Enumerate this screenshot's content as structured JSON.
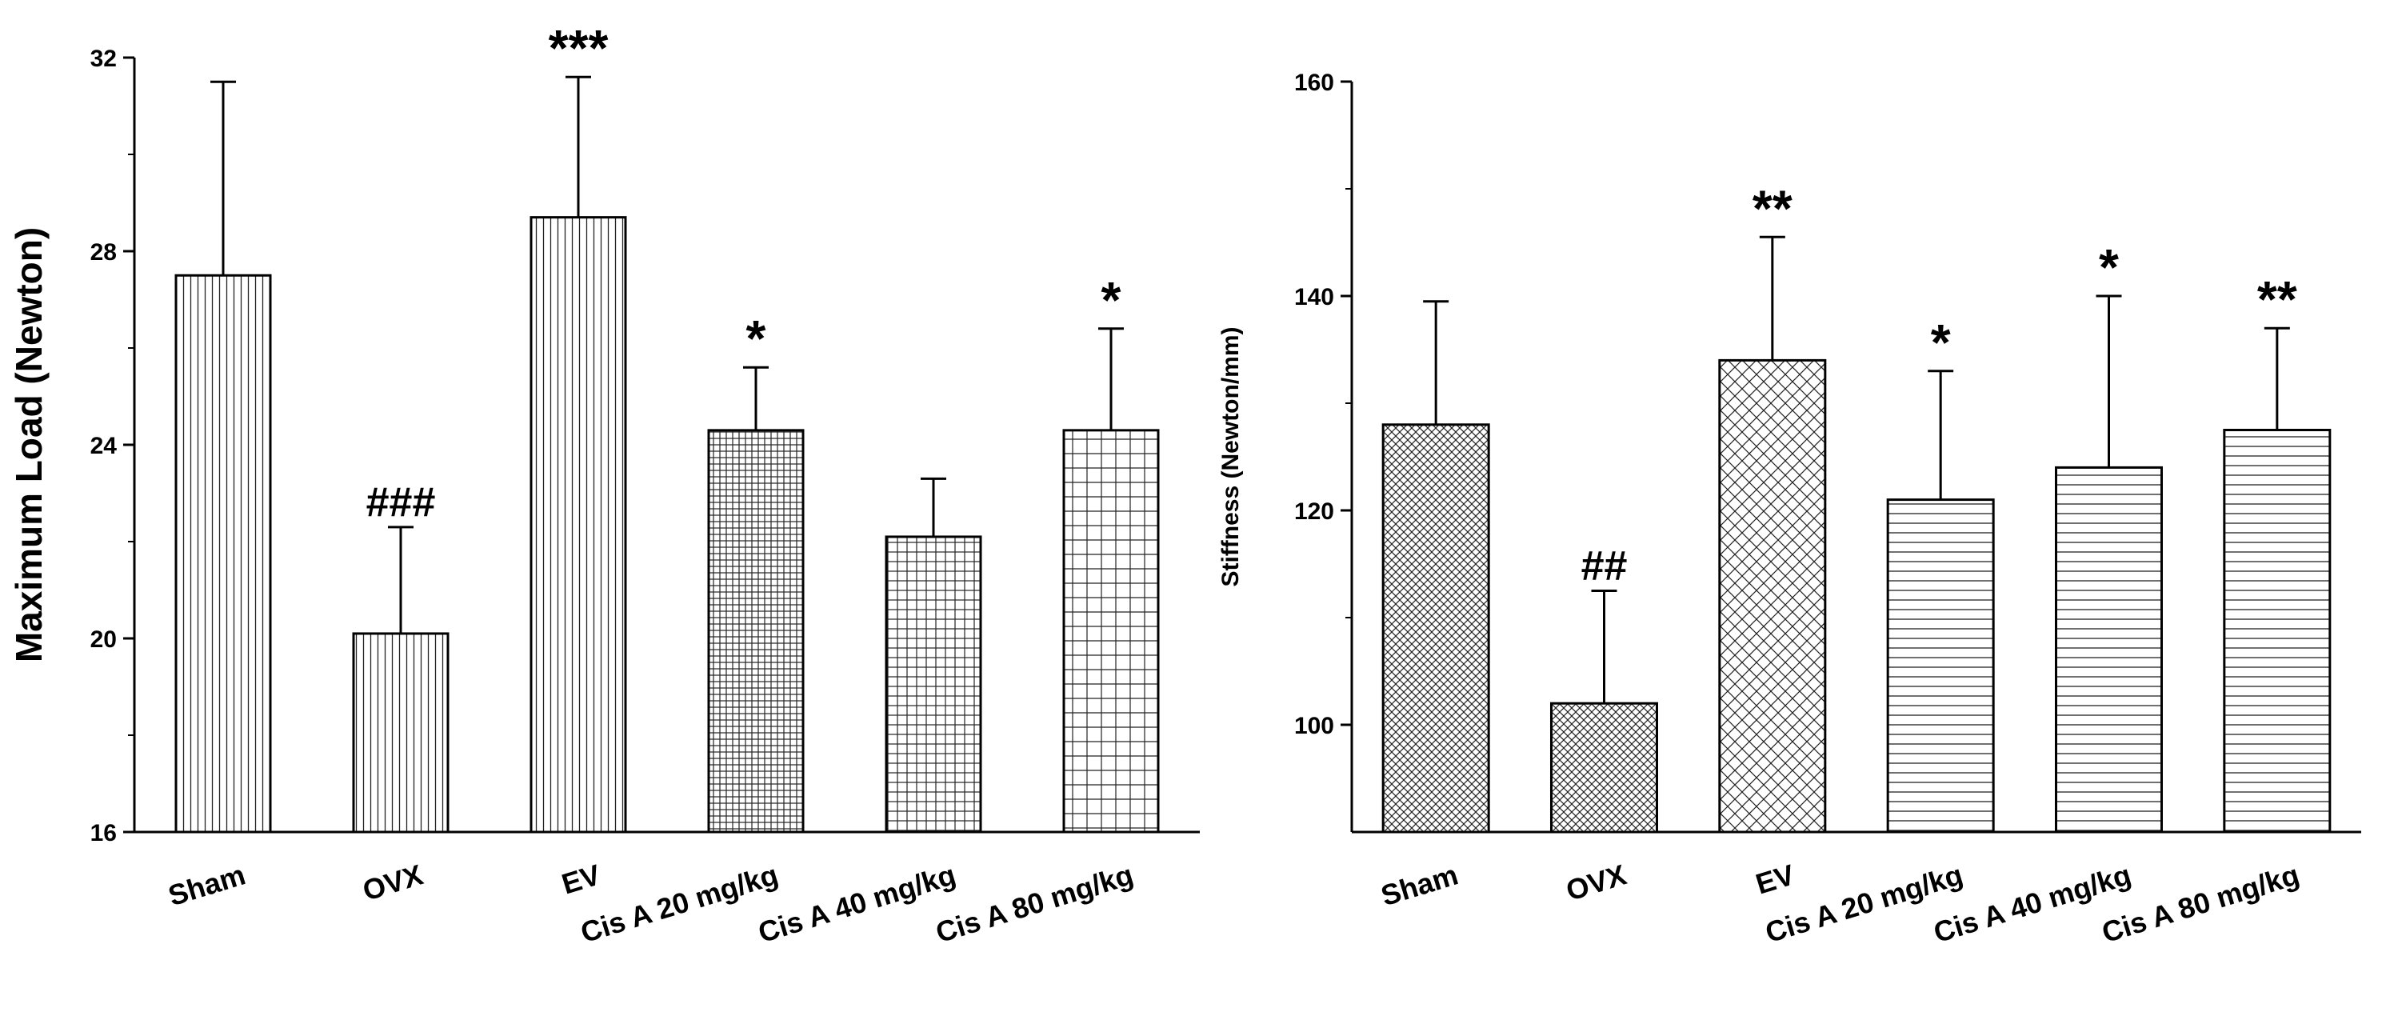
{
  "chart_data": [
    {
      "type": "bar",
      "title": "",
      "xlabel": "",
      "ylabel": "Maximum Load (Newton)",
      "ylim": [
        16,
        32
      ],
      "yticks": [
        16,
        20,
        24,
        28,
        32
      ],
      "grid": false,
      "categories": [
        "Sham",
        "OVX",
        "EV",
        "Cis A 20 mg/kg",
        "Cis A 40 mg/kg",
        "Cis A 80 mg/kg"
      ],
      "values": [
        27.5,
        20.1,
        28.7,
        24.3,
        22.1,
        24.3
      ],
      "errors": [
        4.0,
        2.2,
        2.9,
        1.3,
        1.2,
        2.1
      ],
      "annotations": [
        "",
        "###",
        "***",
        "*",
        "",
        "*"
      ],
      "patterns": [
        "vlines",
        "vlines",
        "vlines",
        "grid-fine",
        "grid-medium",
        "grid-wide"
      ]
    },
    {
      "type": "bar",
      "title": "",
      "xlabel": "",
      "ylabel": "Stiffness (Newton/mm)",
      "ylim": [
        90,
        160
      ],
      "yticks": [
        100,
        120,
        140,
        160
      ],
      "grid": false,
      "categories": [
        "Sham",
        "OVX",
        "EV",
        "Cis A 20 mg/kg",
        "Cis A 40 mg/kg",
        "Cis A 80 mg/kg"
      ],
      "values": [
        128,
        102,
        134,
        121,
        124,
        127.5
      ],
      "errors": [
        11.5,
        10.5,
        11.5,
        12,
        16,
        9.5
      ],
      "annotations": [
        "",
        "##",
        "**",
        "*",
        "*",
        "**"
      ],
      "patterns": [
        "cross-fine",
        "cross-fine",
        "cross-wide",
        "hlines",
        "hlines",
        "hlines"
      ]
    }
  ]
}
